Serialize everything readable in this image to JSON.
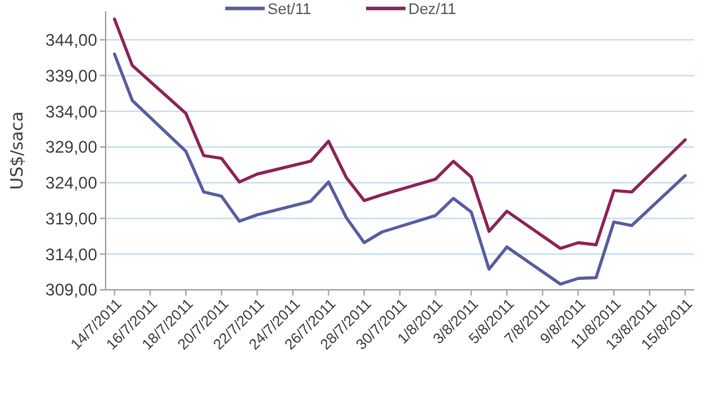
{
  "chart_data": {
    "type": "line",
    "ylabel": "US$/saca",
    "x": [
      "2011-07-14",
      "2011-07-15",
      "2011-07-18",
      "2011-07-19",
      "2011-07-20",
      "2011-07-21",
      "2011-07-22",
      "2011-07-25",
      "2011-07-26",
      "2011-07-27",
      "2011-07-28",
      "2011-07-29",
      "2011-08-01",
      "2011-08-02",
      "2011-08-03",
      "2011-08-04",
      "2011-08-05",
      "2011-08-08",
      "2011-08-09",
      "2011-08-10",
      "2011-08-11",
      "2011-08-12",
      "2011-08-15"
    ],
    "series": [
      {
        "name": "Set/11",
        "color": "#595d9f",
        "values": [
          342.0,
          335.5,
          328.4,
          322.7,
          322.1,
          318.6,
          319.5,
          321.4,
          324.1,
          319.1,
          315.6,
          317.1,
          319.4,
          321.8,
          319.9,
          311.9,
          315.0,
          309.8,
          310.6,
          310.7,
          318.5,
          318.0,
          325.0
        ]
      },
      {
        "name": "Dez/11",
        "color": "#8c2457",
        "values": [
          346.9,
          340.4,
          333.7,
          327.8,
          327.4,
          324.1,
          325.2,
          327.0,
          329.8,
          324.7,
          321.5,
          322.3,
          324.5,
          327.0,
          324.8,
          317.2,
          320.0,
          314.8,
          315.6,
          315.3,
          322.9,
          322.7,
          330.0
        ]
      }
    ],
    "xlim": [
      "2011-07-13T12:00",
      "2011-08-15T12:00"
    ],
    "xticks": [
      {
        "value": "2011-07-14",
        "label": "14/7/2011"
      },
      {
        "value": "2011-07-16",
        "label": "16/7/2011"
      },
      {
        "value": "2011-07-18",
        "label": "18/7/2011"
      },
      {
        "value": "2011-07-20",
        "label": "20/7/2011"
      },
      {
        "value": "2011-07-22",
        "label": "22/7/2011"
      },
      {
        "value": "2011-07-24",
        "label": "24/7/2011"
      },
      {
        "value": "2011-07-26",
        "label": "26/7/2011"
      },
      {
        "value": "2011-07-28",
        "label": "28/7/2011"
      },
      {
        "value": "2011-07-30",
        "label": "30/7/2011"
      },
      {
        "value": "2011-08-01",
        "label": "1/8/2011"
      },
      {
        "value": "2011-08-03",
        "label": "3/8/2011"
      },
      {
        "value": "2011-08-05",
        "label": "5/8/2011"
      },
      {
        "value": "2011-08-07",
        "label": "7/8/2011"
      },
      {
        "value": "2011-08-09",
        "label": "9/8/2011"
      },
      {
        "value": "2011-08-11",
        "label": "11/8/2011"
      },
      {
        "value": "2011-08-13",
        "label": "13/8/2011"
      },
      {
        "value": "2011-08-15",
        "label": "15/8/2011"
      }
    ],
    "ylim": [
      309,
      348
    ],
    "yticks": [
      {
        "value": 309,
        "label": "309,00"
      },
      {
        "value": 314,
        "label": "314,00"
      },
      {
        "value": 319,
        "label": "319,00"
      },
      {
        "value": 324,
        "label": "324,00"
      },
      {
        "value": 329,
        "label": "329,00"
      },
      {
        "value": 334,
        "label": "334,00"
      },
      {
        "value": 339,
        "label": "339,00"
      },
      {
        "value": 344,
        "label": "344,00"
      }
    ],
    "grid": "y",
    "legend": "top",
    "marker": "none",
    "line_style": "solid"
  }
}
